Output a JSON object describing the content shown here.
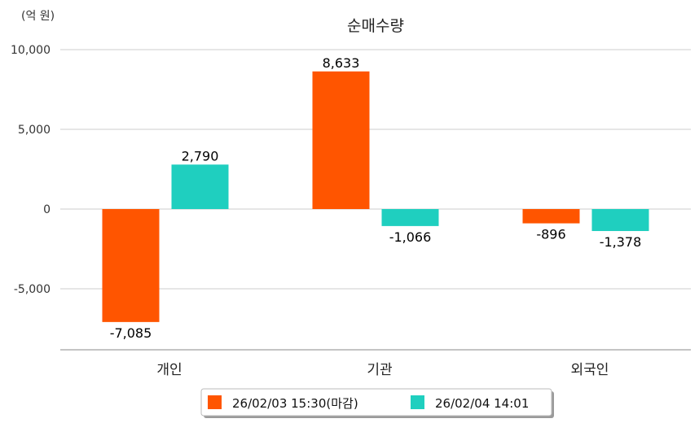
{
  "chart_data": {
    "type": "bar",
    "title": "순매수량",
    "unit_label": "(억 원)",
    "categories": [
      "개인",
      "기관",
      "외국인"
    ],
    "series": [
      {
        "name": "26/02/03 15:30(마감)",
        "color": "#ff5500",
        "values": [
          -7085,
          8633,
          -896
        ]
      },
      {
        "name": "26/02/04 14:01",
        "color": "#1fcfbf",
        "values": [
          2790,
          -1066,
          -1378
        ]
      }
    ],
    "value_labels": [
      [
        "-7,085",
        "8,633",
        "-896"
      ],
      [
        "2,790",
        "-1,066",
        "-1,378"
      ]
    ],
    "yticks": [
      10000,
      5000,
      0,
      -5000
    ],
    "ytick_labels": [
      "10,000",
      "5,000",
      "0",
      "-5,000"
    ],
    "ylim": [
      -8800,
      10000
    ],
    "grid": true,
    "legend_position": "bottom"
  }
}
